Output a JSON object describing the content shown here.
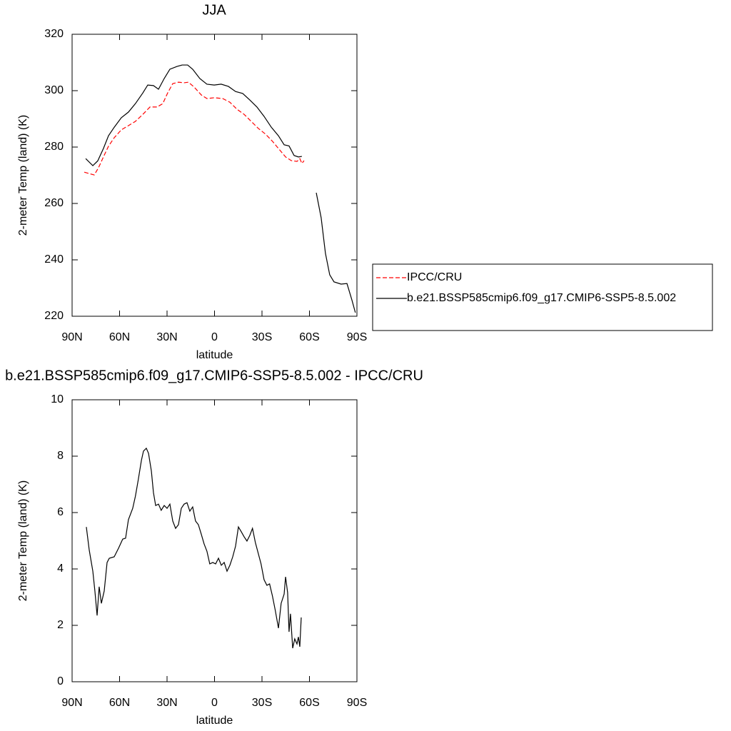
{
  "chart_data": [
    {
      "type": "line",
      "title": "JJA",
      "xlabel": "latitude",
      "ylabel": "2-meter Temp (land) (K)",
      "xlim": [
        90,
        -90
      ],
      "xticks": [
        {
          "value": 90,
          "label": "90N"
        },
        {
          "value": 60,
          "label": "60N"
        },
        {
          "value": 30,
          "label": "30N"
        },
        0,
        {
          "value": -30,
          "label": "30S"
        },
        {
          "value": -60,
          "label": "60S"
        },
        {
          "value": -90,
          "label": "90S"
        }
      ],
      "ylim": [
        220,
        320
      ],
      "yticks": [
        220,
        240,
        260,
        280,
        300,
        320
      ],
      "legend": "right",
      "series": [
        {
          "name": "IPCC/CRU",
          "color": "#ff0000",
          "line_style": "dashed",
          "x": [
            82.3,
            79.2,
            76.0,
            73.3,
            70.2,
            67.0,
            63.4,
            58.9,
            54.4,
            50.0,
            45.3,
            40.8,
            36.3,
            32.7,
            29.6,
            26.4,
            22.8,
            19.2,
            16.5,
            12.9,
            8.4,
            4.8,
            0.2,
            -5.2,
            -9.7,
            -14.2,
            -18.7,
            -23.2,
            -27.7,
            -32.2,
            -36.7,
            -40.4,
            -44.9,
            -48.5,
            -52.1,
            -53.9,
            -55.2,
            -56.6
          ],
          "values": [
            271.1,
            270.6,
            270.1,
            272.7,
            276.5,
            280.3,
            283.3,
            286.1,
            287.6,
            289.1,
            291.6,
            294.2,
            294.2,
            295.4,
            299.2,
            302.5,
            303.0,
            302.8,
            303.0,
            301.3,
            298.5,
            297.2,
            297.5,
            297.2,
            295.9,
            293.4,
            291.6,
            289.1,
            286.6,
            284.6,
            282.0,
            279.5,
            276.5,
            275.2,
            274.9,
            275.9,
            274.2,
            275.2
          ]
        },
        {
          "name": "b.e21.BSSP585cmip6.f09_g17.CMIP6-SSP5-8.5.002",
          "color": "#000000",
          "line_style": "solid",
          "x": [
            81.4,
            76.9,
            73.8,
            70.2,
            67.0,
            63.4,
            58.9,
            54.4,
            50.0,
            45.3,
            42.2,
            38.6,
            35.4,
            31.8,
            28.2,
            23.7,
            20.5,
            17.0,
            13.8,
            9.3,
            4.8,
            0.2,
            -4.2,
            -8.8,
            -13.3,
            -17.8,
            -22.3,
            -26.8,
            -31.3,
            -35.8,
            -40.4,
            -44.0,
            -47.1,
            -50.3,
            -53.0,
            -55.2,
            -60.0,
            -64.3,
            -67.4,
            -70.1,
            -72.8,
            -75.5,
            -80.0,
            -83.7,
            -86.8,
            -89.0
          ],
          "values": [
            275.9,
            273.4,
            275.1,
            279.5,
            284.0,
            287.0,
            290.4,
            292.4,
            295.4,
            299.2,
            302.0,
            301.8,
            300.5,
            304.3,
            307.6,
            308.6,
            309.1,
            309.1,
            307.6,
            304.3,
            302.3,
            302.0,
            302.3,
            301.5,
            299.7,
            299.0,
            296.7,
            294.2,
            290.9,
            287.1,
            284.0,
            280.8,
            280.4,
            277.0,
            276.5,
            276.7,
            null,
            263.8,
            254.9,
            242.3,
            234.7,
            232.2,
            231.4,
            231.6,
            225.8,
            221.3
          ]
        }
      ]
    },
    {
      "type": "line",
      "title": "b.e21.BSSP585cmip6.f09_g17.CMIP6-SSP5-8.5.002 - IPCC/CRU",
      "xlabel": "latitude",
      "ylabel": "2-meter Temp (land) (K)",
      "xlim": [
        90,
        -90
      ],
      "xticks": [
        {
          "value": 90,
          "label": "90N"
        },
        {
          "value": 60,
          "label": "60N"
        },
        {
          "value": 30,
          "label": "30N"
        },
        0,
        {
          "value": -30,
          "label": "30S"
        },
        {
          "value": -60,
          "label": "60S"
        },
        {
          "value": -90,
          "label": "90S"
        }
      ],
      "ylim": [
        0,
        10
      ],
      "yticks": [
        0,
        2,
        4,
        6,
        8,
        10
      ],
      "series": [
        {
          "color": "#000000",
          "line_style": "solid",
          "x": [
            81.0,
            79.2,
            76.9,
            75.6,
            74.2,
            72.9,
            71.5,
            69.7,
            67.9,
            66.5,
            63.4,
            60.7,
            58.0,
            56.2,
            54.4,
            51.7,
            50.0,
            48.2,
            46.2,
            44.9,
            43.1,
            41.7,
            39.9,
            38.6,
            37.2,
            35.4,
            33.7,
            31.8,
            30.0,
            28.2,
            26.4,
            24.6,
            22.8,
            21.0,
            19.2,
            17.4,
            15.6,
            13.8,
            12.0,
            10.2,
            8.4,
            6.6,
            4.8,
            3.0,
            1.1,
            -0.7,
            -2.5,
            -4.3,
            -6.1,
            -7.9,
            -9.7,
            -11.5,
            -13.3,
            -15.1,
            -16.9,
            -18.7,
            -20.5,
            -22.3,
            -24.0,
            -25.8,
            -27.6,
            -29.4,
            -31.3,
            -33.1,
            -34.8,
            -36.6,
            -38.4,
            -40.4,
            -42.1,
            -44.0,
            -44.9,
            -46.2,
            -47.1,
            -48.0,
            -49.4,
            -50.7,
            -52.1,
            -53.0,
            -53.9,
            -54.8
          ],
          "values": [
            5.49,
            4.68,
            3.92,
            3.22,
            2.35,
            3.37,
            2.78,
            3.22,
            4.23,
            4.38,
            4.43,
            4.73,
            5.06,
            5.09,
            5.75,
            6.15,
            6.58,
            7.16,
            7.85,
            8.18,
            8.28,
            8.1,
            7.47,
            6.71,
            6.25,
            6.3,
            6.08,
            6.25,
            6.15,
            6.3,
            5.7,
            5.44,
            5.57,
            6.15,
            6.3,
            6.35,
            6.05,
            6.2,
            5.7,
            5.57,
            5.24,
            4.89,
            4.63,
            4.18,
            4.23,
            4.18,
            4.38,
            4.13,
            4.23,
            3.92,
            4.13,
            4.43,
            4.81,
            5.49,
            5.32,
            5.14,
            4.99,
            5.19,
            5.44,
            4.94,
            4.56,
            4.18,
            3.62,
            3.42,
            3.47,
            3.04,
            2.53,
            1.9,
            2.78,
            3.11,
            3.72,
            3.16,
            1.77,
            2.41,
            1.19,
            1.52,
            1.34,
            1.59,
            1.24,
            2.28
          ]
        }
      ]
    }
  ]
}
